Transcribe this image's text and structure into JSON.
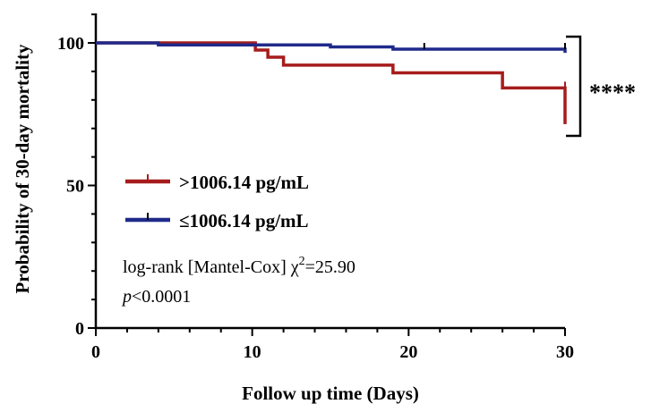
{
  "chart_data": {
    "type": "line",
    "subtype": "kaplan-meier step",
    "xlabel": "Follow up time (Days)",
    "ylabel": "Probability of 30-day mortality",
    "xlim": [
      0,
      30
    ],
    "ylim": [
      0,
      110
    ],
    "x_ticks": [
      "0",
      "10",
      "20",
      "30"
    ],
    "y_ticks": [
      "0",
      "50",
      "100"
    ],
    "x_tick_values": [
      0,
      10,
      20,
      30
    ],
    "y_tick_values": [
      0,
      50,
      100
    ],
    "grid": false,
    "legend_position": "lower-left",
    "series": [
      {
        "name": ">1006.14 pg/mL",
        "color": "#a61c1c",
        "x": [
          0,
          10,
          10.2,
          11,
          12,
          19,
          26,
          30
        ],
        "y": [
          100,
          100,
          97.5,
          95,
          92.2,
          89.5,
          84.2,
          71.5
        ],
        "censored": [
          [
            30,
            84.2
          ]
        ]
      },
      {
        "name": "≤1006.14 pg/mL",
        "color": "#1f2a8a",
        "x": [
          0,
          4,
          15,
          19,
          30
        ],
        "y": [
          100,
          99.3,
          98.6,
          97.8,
          96.5
        ],
        "censored": [
          [
            21,
            97.8
          ],
          [
            30,
            97.8
          ]
        ]
      }
    ],
    "annotations": {
      "stat_line1_prefix": "log-rank [Mantel-Cox] χ",
      "stat_line1_sup": "2",
      "stat_line1_suffix": "=25.90",
      "stat_line2_italic": "p",
      "stat_line2_rest": "<0.0001",
      "significance": "****"
    }
  }
}
